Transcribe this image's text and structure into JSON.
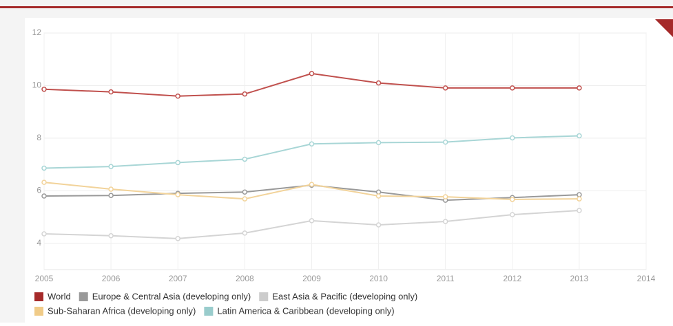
{
  "chart_data": {
    "type": "line",
    "x": [
      2005,
      2006,
      2007,
      2008,
      2009,
      2010,
      2011,
      2012,
      2013
    ],
    "xlim": [
      2005,
      2014
    ],
    "xticks": [
      2005,
      2006,
      2007,
      2008,
      2009,
      2010,
      2011,
      2012,
      2013,
      2014
    ],
    "ylim": [
      3,
      12
    ],
    "yticks": [
      4,
      6,
      8,
      10,
      12
    ],
    "grid": true,
    "series": [
      {
        "name": "World",
        "color": "#c0504d",
        "legend_color": "#a52a2a",
        "values": [
          9.86,
          9.76,
          9.6,
          9.68,
          10.46,
          10.1,
          9.91,
          9.91,
          9.91
        ]
      },
      {
        "name": "Europe & Central Asia (developing only)",
        "color": "#999999",
        "legend_color": "#999999",
        "values": [
          5.8,
          5.82,
          5.9,
          5.95,
          6.21,
          5.95,
          5.64,
          5.74,
          5.85
        ]
      },
      {
        "name": "East Asia & Pacific (developing only)",
        "color": "#d4d4d4",
        "legend_color": "#cccccc",
        "values": [
          4.36,
          4.29,
          4.18,
          4.39,
          4.86,
          4.7,
          4.83,
          5.09,
          5.25
        ]
      },
      {
        "name": "Sub-Saharan Africa (developing only)",
        "color": "#f2d39a",
        "legend_color": "#f0cb88",
        "values": [
          6.32,
          6.06,
          5.85,
          5.69,
          6.24,
          5.8,
          5.77,
          5.67,
          5.69
        ]
      },
      {
        "name": "Latin America & Caribbean (developing only)",
        "color": "#a8d6d6",
        "legend_color": "#99cccc",
        "values": [
          6.86,
          6.92,
          7.07,
          7.2,
          7.78,
          7.83,
          7.85,
          8.01,
          8.09
        ]
      }
    ]
  }
}
